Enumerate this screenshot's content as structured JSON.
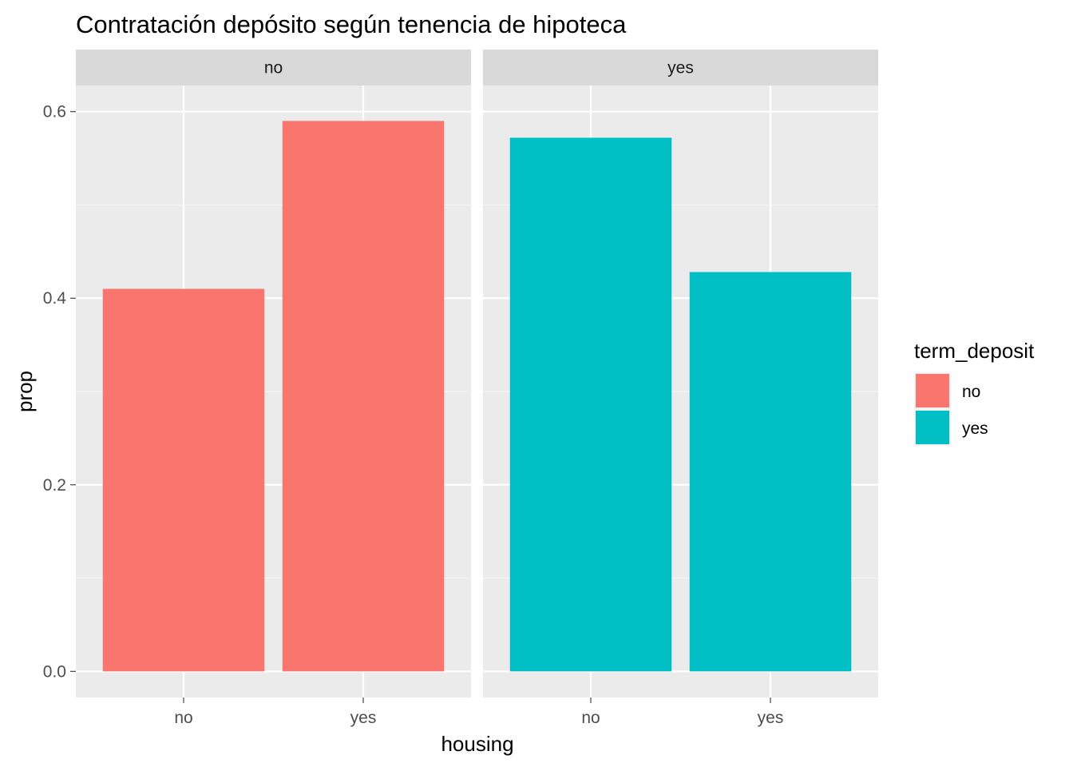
{
  "chart_data": {
    "type": "bar",
    "title": "Contratación depósito según tenencia de hipoteca",
    "xlabel": "housing",
    "ylabel": "prop",
    "ylim": [
      -0.028,
      0.628
    ],
    "yticks": [
      0.0,
      0.2,
      0.4,
      0.6
    ],
    "ytick_labels": [
      "0.0",
      "0.2",
      "0.4",
      "0.6"
    ],
    "grid": true,
    "facet_variable": "term_deposit",
    "facets": [
      {
        "label": "no",
        "categories": [
          "no",
          "yes"
        ],
        "values": [
          0.41,
          0.59
        ],
        "fill_group": "no"
      },
      {
        "label": "yes",
        "categories": [
          "no",
          "yes"
        ],
        "values": [
          0.572,
          0.428
        ],
        "fill_group": "yes"
      }
    ],
    "legend": {
      "title": "term_deposit",
      "placement": "right",
      "entries": [
        {
          "label": "no",
          "color": "#F8766D"
        },
        {
          "label": "yes",
          "color": "#00BFC4"
        }
      ]
    },
    "colors": {
      "panel_background": "#EBEBEB",
      "strip_background": "#D9D9D9",
      "grid_major": "#FFFFFF",
      "grid_minor": "#F5F5F5",
      "no": "#F8766D",
      "yes": "#00BFC4"
    }
  }
}
